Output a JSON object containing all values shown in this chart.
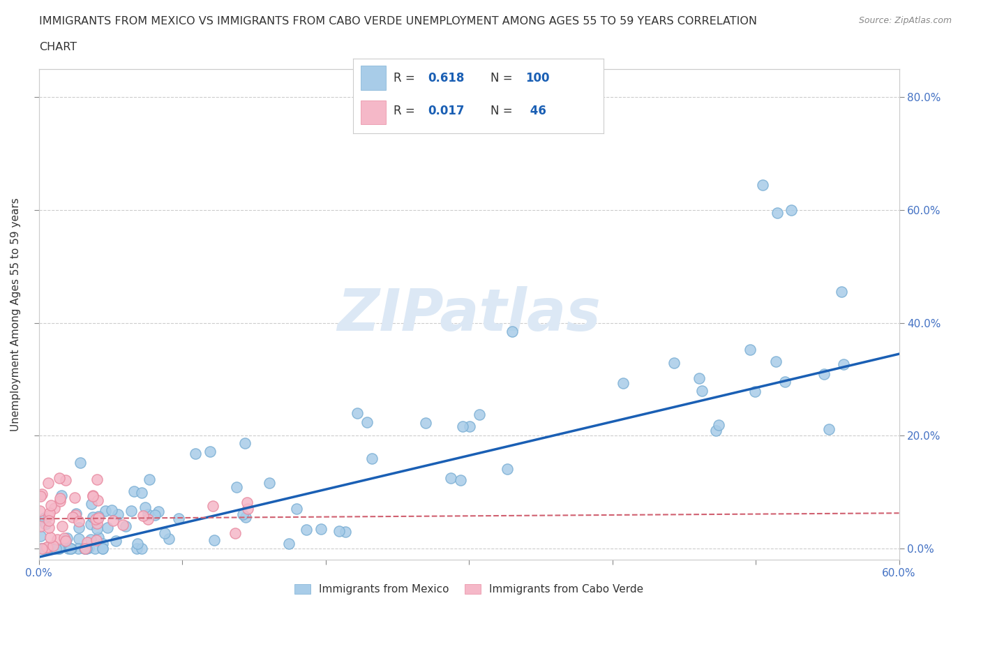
{
  "title_line1": "IMMIGRANTS FROM MEXICO VS IMMIGRANTS FROM CABO VERDE UNEMPLOYMENT AMONG AGES 55 TO 59 YEARS CORRELATION",
  "title_line2": "CHART",
  "source": "Source: ZipAtlas.com",
  "ylabel": "Unemployment Among Ages 55 to 59 years",
  "xlim": [
    0.0,
    0.6
  ],
  "ylim": [
    -0.02,
    0.85
  ],
  "xticks": [
    0.0,
    0.1,
    0.2,
    0.3,
    0.4,
    0.5,
    0.6
  ],
  "yticks": [
    0.0,
    0.2,
    0.4,
    0.6,
    0.8
  ],
  "xtick_labels": [
    "0.0%",
    "",
    "",
    "",
    "",
    "",
    "60.0%"
  ],
  "ytick_labels_right": [
    "0.0%",
    "20.0%",
    "40.0%",
    "60.0%",
    "80.0%"
  ],
  "mexico_color": "#a8cce8",
  "mexico_edge_color": "#7bafd4",
  "caboverde_color": "#f5b8c8",
  "caboverde_edge_color": "#e88aa0",
  "mexico_R": 0.618,
  "mexico_N": 100,
  "caboverde_R": 0.017,
  "caboverde_N": 46,
  "trendline_mexico_color": "#1a5fb4",
  "trendline_caboverde_color": "#d06070",
  "watermark_text": "ZIPatlas",
  "watermark_color": "#dce8f5",
  "legend_color": "#1a5fb4",
  "bottom_legend_mexico": "Immigrants from Mexico",
  "bottom_legend_cabo": "Immigrants from Cabo Verde",
  "trendline_mexico_x0": 0.0,
  "trendline_mexico_y0": -0.015,
  "trendline_mexico_x1": 0.6,
  "trendline_mexico_y1": 0.345,
  "trendline_cabo_x0": 0.0,
  "trendline_cabo_y0": 0.053,
  "trendline_cabo_x1": 0.6,
  "trendline_cabo_y1": 0.063
}
